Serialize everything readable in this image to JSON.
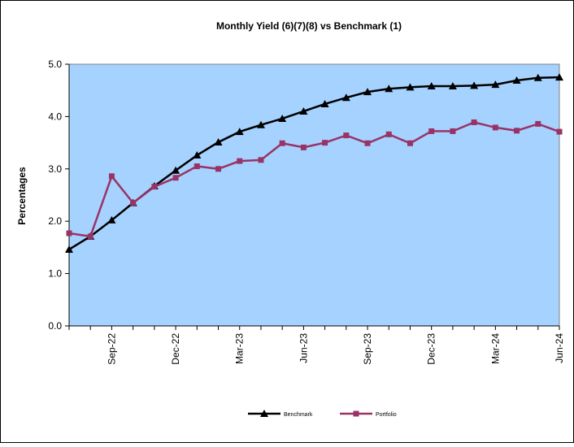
{
  "chart_data": {
    "type": "line",
    "title": "Monthly Yield (6)(7)(8) vs Benchmark (1)",
    "y_label": "Percentages",
    "categories": [
      null,
      null,
      "Sep-22",
      null,
      null,
      "Dec-22",
      null,
      null,
      "Mar-23",
      null,
      null,
      "Jun-23",
      null,
      null,
      "Sep-23",
      null,
      null,
      "Dec-23",
      null,
      null,
      "Mar-24",
      null,
      null,
      "Jun-24"
    ],
    "series": [
      {
        "name": "Benchmark",
        "color": "#000000",
        "marker": "triangle",
        "values": [
          1.46,
          1.71,
          2.02,
          2.35,
          2.67,
          2.97,
          3.26,
          3.51,
          3.71,
          3.84,
          3.96,
          4.1,
          4.24,
          4.36,
          4.47,
          4.53,
          4.56,
          4.58,
          4.58,
          4.59,
          4.61,
          4.69,
          4.74,
          4.75
        ]
      },
      {
        "name": "Portfolio",
        "color": "#993366",
        "marker": "square",
        "values": [
          1.77,
          1.71,
          2.86,
          2.35,
          2.66,
          2.83,
          3.05,
          3.0,
          3.15,
          3.17,
          3.49,
          3.41,
          3.5,
          3.64,
          3.49,
          3.66,
          3.49,
          3.72,
          3.72,
          3.89,
          3.79,
          3.73,
          3.86,
          3.71
        ]
      }
    ],
    "ylim": [
      0,
      5
    ],
    "yticks": [
      {
        "value": 0,
        "label": "0.0"
      },
      {
        "value": 1,
        "label": "1.0"
      },
      {
        "value": 2,
        "label": "2.0"
      },
      {
        "value": 3,
        "label": "3.0"
      },
      {
        "value": 4,
        "label": "4.0"
      },
      {
        "value": 5,
        "label": "5.0"
      }
    ],
    "plot_background": "#a6d2ff",
    "legend": "bottom"
  }
}
